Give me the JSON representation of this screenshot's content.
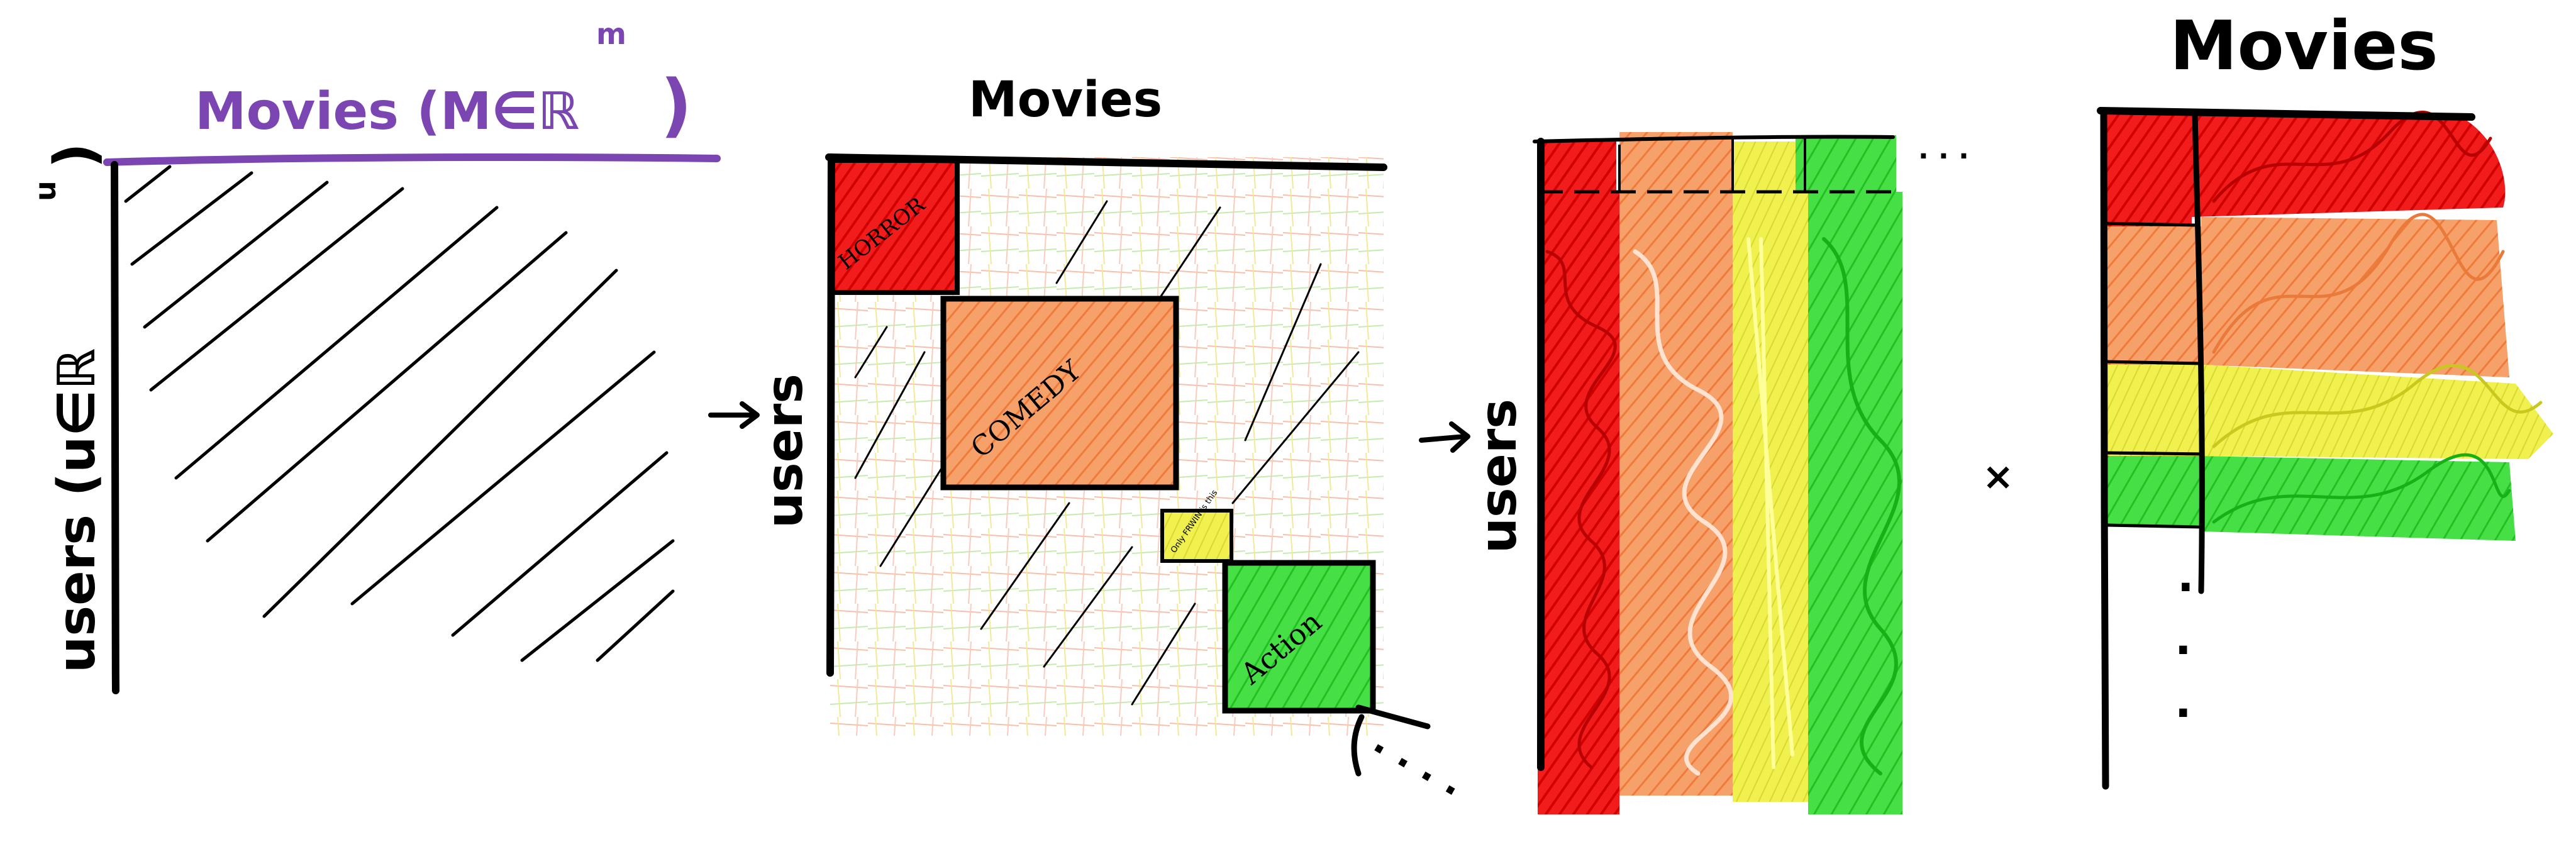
{
  "colors": {
    "ink": "#000000",
    "purple": "#7b45b2",
    "red": "#f21c1c",
    "orange": "#f6a06a",
    "yellow": "#f0f04e",
    "green": "#3ee03e",
    "white": "#ffffff"
  },
  "panel1": {
    "top_label": "Movies (M∈ℝ",
    "top_exponent": "m",
    "top_close": ")",
    "side_label": "users (u∈ℝ",
    "side_exponent": "u",
    "side_close": ")"
  },
  "panel2": {
    "top_label": "Movies",
    "side_label": "users",
    "blocks": {
      "horror": "HORROR",
      "comedy": "COMEDY",
      "tiny": "Only FRWIN is this",
      "action": "Action"
    },
    "ellipsis": ". . . ."
  },
  "panel3": {
    "side_label": "users",
    "ellipsis": ". . ."
  },
  "times_symbol": "×",
  "panel4": {
    "top_label": "Movies",
    "ellipsis_dots": [
      ".",
      ".",
      "."
    ]
  },
  "arrows": [
    {
      "symbol": "→"
    },
    {
      "symbol": "→"
    }
  ]
}
